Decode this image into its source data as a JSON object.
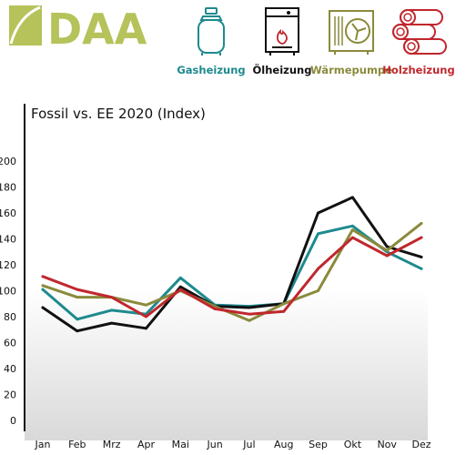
{
  "logo": {
    "text": "DAA",
    "colors": {
      "mark": "#b6c25a"
    }
  },
  "heating_types": [
    {
      "label": "Gasheizung",
      "icon": "gas-bottle-icon",
      "color": "#1e8a8e"
    },
    {
      "label": "Ölheizung",
      "icon": "oil-boiler-icon",
      "color": "#111111"
    },
    {
      "label": "Wärmepumpe",
      "icon": "heat-pump-icon",
      "color": "#8a8a3c"
    },
    {
      "label": "Holzheizung",
      "icon": "firewood-icon",
      "color": "#c0272d"
    }
  ],
  "chart_data": {
    "type": "line",
    "title": "Fossil vs. EE 2020 (Index)",
    "categories": [
      "Jan",
      "Feb",
      "Mrz",
      "Apr",
      "Mai",
      "Jun",
      "Jul",
      "Aug",
      "Sep",
      "Okt",
      "Nov",
      "Dez"
    ],
    "y_ticks": [
      0,
      20,
      40,
      60,
      80,
      100,
      120,
      140,
      160,
      180,
      200
    ],
    "ylim": [
      0,
      200
    ],
    "grid": false,
    "series": [
      {
        "name": "Gasheizung",
        "color": "#1e8a8e",
        "values": [
          101,
          78,
          85,
          82,
          110,
          89,
          88,
          90,
          144,
          150,
          130,
          117
        ]
      },
      {
        "name": "Ölheizung",
        "color": "#111111",
        "values": [
          87,
          69,
          75,
          71,
          103,
          88,
          87,
          90,
          160,
          172,
          134,
          126
        ]
      },
      {
        "name": "Wärmepumpe",
        "color": "#8a8a3c",
        "values": [
          104,
          95,
          95,
          89,
          100,
          88,
          77,
          90,
          100,
          147,
          131,
          152
        ]
      },
      {
        "name": "Holzheizung",
        "color": "#c0272d",
        "values": [
          111,
          101,
          95,
          80,
          101,
          86,
          82,
          84,
          117,
          141,
          127,
          141
        ]
      }
    ]
  }
}
